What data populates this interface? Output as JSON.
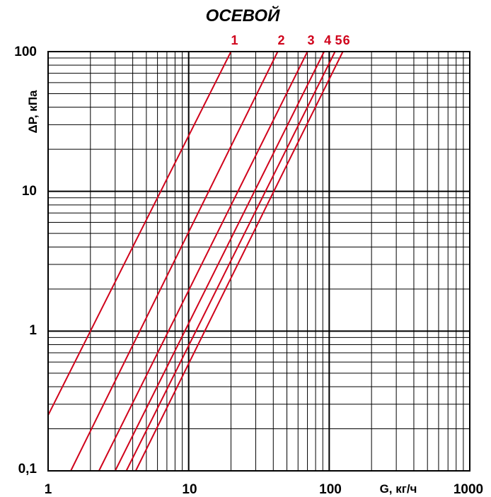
{
  "chart_data": {
    "type": "line",
    "title": "ОСЕВОЙ",
    "xlabel": "G, кг/ч",
    "ylabel": "ΔP, кПа",
    "xscale": "log",
    "yscale": "log",
    "xlim": [
      1,
      1000
    ],
    "ylim": [
      0.1,
      100
    ],
    "x_tick_labels": [
      "1",
      "10",
      "100",
      "1000"
    ],
    "y_tick_labels": [
      "100",
      "10",
      "1",
      "0,1"
    ],
    "grid": true,
    "line_color": "#d0021b",
    "series": [
      {
        "name": "1",
        "points": [
          [
            1,
            0.25
          ],
          [
            20,
            100
          ]
        ]
      },
      {
        "name": "2",
        "points": [
          [
            1.45,
            0.1
          ],
          [
            43,
            100
          ]
        ]
      },
      {
        "name": "3",
        "points": [
          [
            2.3,
            0.1
          ],
          [
            70,
            100
          ]
        ]
      },
      {
        "name": "4",
        "points": [
          [
            3,
            0.1
          ],
          [
            92,
            100
          ]
        ]
      },
      {
        "name": "5",
        "points": [
          [
            3.6,
            0.1
          ],
          [
            110,
            100
          ]
        ]
      },
      {
        "name": "6",
        "points": [
          [
            4.2,
            0.1
          ],
          [
            125,
            100
          ]
        ]
      }
    ]
  }
}
